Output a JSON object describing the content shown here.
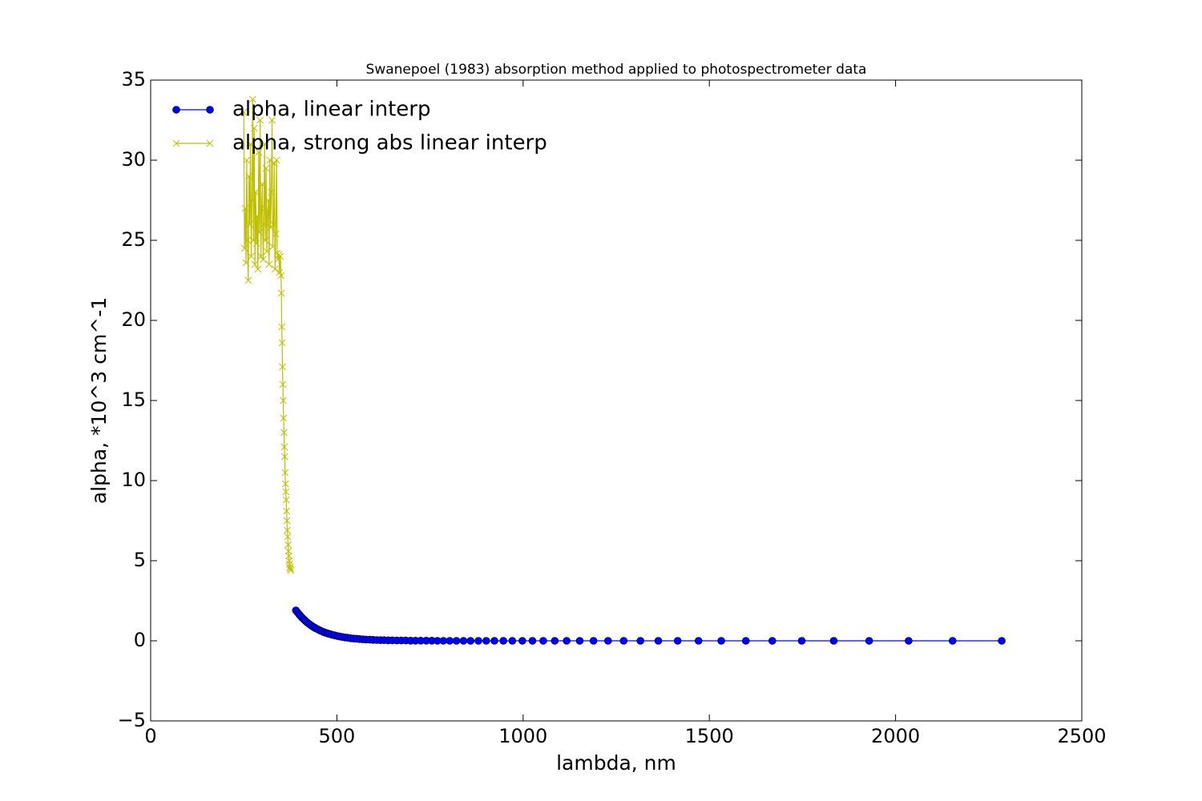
{
  "chart_data": {
    "type": "line",
    "title": "Swanepoel (1983) absorption method applied to photospectrometer data",
    "xlabel": "lambda, nm",
    "ylabel": "alpha, *10^3 cm^-1",
    "xlim": [
      0,
      2500
    ],
    "xticks": [
      0,
      500,
      1000,
      1500,
      2000,
      2500
    ],
    "ylim": [
      -5,
      35
    ],
    "yticks": [
      {
        "value": -5,
        "label": "−5"
      },
      0,
      5,
      10,
      15,
      20,
      25,
      30,
      35
    ],
    "legend": "upper left",
    "series": [
      {
        "name": "alpha, linear interp",
        "color": "#0000ff",
        "marker": "o",
        "x": [
          390,
          394,
          399,
          403,
          407,
          412,
          416,
          421,
          426,
          431,
          436,
          441,
          446,
          452,
          457,
          463,
          469,
          475,
          481,
          487,
          494,
          501,
          507,
          514,
          522,
          529,
          537,
          545,
          553,
          561,
          570,
          578,
          588,
          597,
          607,
          617,
          627,
          638,
          649,
          661,
          673,
          685,
          698,
          711,
          725,
          740,
          755,
          770,
          786,
          803,
          821,
          840,
          859,
          880,
          901,
          923,
          947,
          971,
          998,
          1025,
          1054,
          1085,
          1117,
          1152,
          1189,
          1228,
          1270,
          1315,
          1363,
          1415,
          1471,
          1532,
          1598,
          1669,
          1748,
          1834,
          1929,
          2035,
          2153,
          2285
        ],
        "values": [
          1.9,
          1.78,
          1.64,
          1.53,
          1.43,
          1.32,
          1.23,
          1.13,
          1.04,
          0.96,
          0.88,
          0.81,
          0.75,
          0.68,
          0.62,
          0.56,
          0.51,
          0.46,
          0.42,
          0.38,
          0.34,
          0.3,
          0.27,
          0.24,
          0.21,
          0.19,
          0.16,
          0.14,
          0.13,
          0.11,
          0.09,
          0.08,
          0.07,
          0.06,
          0.05,
          0.04,
          0.04,
          0.03,
          0.03,
          0.02,
          0.02,
          0.02,
          0.01,
          0.01,
          0.01,
          0.01,
          0.01,
          0,
          0,
          0,
          0,
          0,
          0,
          0,
          0,
          0,
          0,
          0,
          0,
          0,
          0,
          0,
          0,
          0,
          0,
          0,
          0,
          0,
          0,
          0,
          0,
          0,
          0,
          0,
          0,
          0,
          0,
          0,
          0,
          0
        ]
      },
      {
        "name": "alpha, strong abs linear interp",
        "color": "#bfbf00",
        "marker": "x",
        "x": [
          250,
          252,
          254,
          256,
          258,
          260,
          262,
          264,
          266,
          268,
          270,
          272,
          274,
          276,
          278,
          280,
          282,
          284,
          286,
          288,
          290,
          292,
          294,
          296,
          298,
          300,
          302,
          304,
          306,
          308,
          310,
          312,
          314,
          316,
          318,
          320,
          322,
          324,
          326,
          328,
          330,
          332,
          334,
          336,
          338,
          340,
          342,
          344,
          346,
          348,
          350,
          351,
          352,
          353,
          354,
          355,
          356,
          357,
          358,
          359,
          360,
          361,
          362,
          363,
          364,
          365,
          366,
          367,
          368,
          369,
          370,
          371,
          372,
          373,
          374,
          375,
          376
        ],
        "values": [
          33,
          24.5,
          27,
          23.6,
          30,
          25,
          22.5,
          29,
          26,
          31,
          24,
          27.5,
          33.8,
          25,
          32,
          23.5,
          28,
          24.8,
          26.5,
          23.2,
          30.5,
          25.5,
          32.5,
          24,
          27,
          28.5,
          23.8,
          26,
          31,
          25,
          29.5,
          24.3,
          26.8,
          27.5,
          23.5,
          30,
          25.8,
          28,
          32.5,
          24.6,
          26,
          29.8,
          23.2,
          25.4,
          30,
          24.2,
          23.8,
          24.1,
          23,
          24,
          22.8,
          21.7,
          19.6,
          18.6,
          17.1,
          16,
          15,
          13.9,
          13,
          12.1,
          11.5,
          10.5,
          9.8,
          9.3,
          8.8,
          8.1,
          7.5,
          6.9,
          6.5,
          6.0,
          5.6,
          5.3,
          5.0,
          4.8,
          4.6,
          4.5,
          4.4
        ]
      }
    ]
  }
}
